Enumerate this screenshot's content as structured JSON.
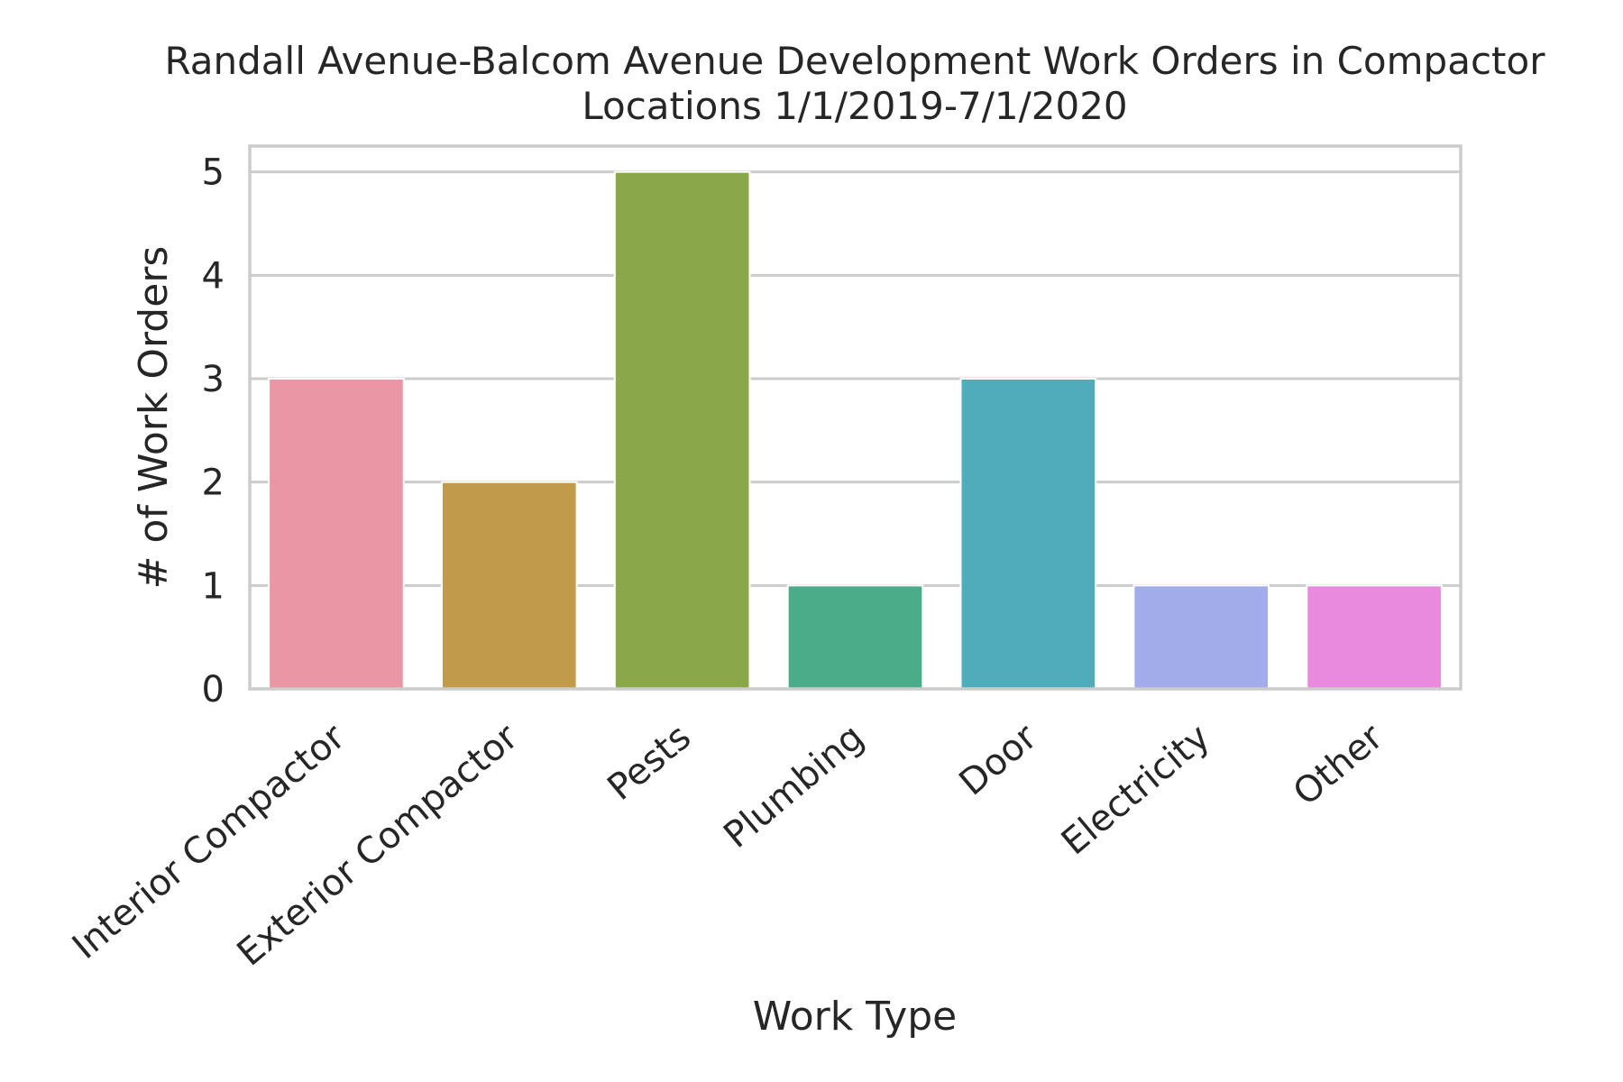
{
  "chart_data": {
    "type": "bar",
    "title_lines": [
      "Randall Avenue-Balcom Avenue Development Work Orders in Compactor",
      "Locations 1/1/2019-7/1/2020"
    ],
    "xlabel": "Work Type",
    "ylabel": "# of Work Orders",
    "categories": [
      "Interior Compactor",
      "Exterior Compactor",
      "Pests",
      "Plumbing",
      "Door",
      "Electricity",
      "Other"
    ],
    "values": [
      3,
      2,
      5,
      1,
      3,
      1,
      1
    ],
    "colors": [
      "#ea96a3",
      "#c29a4b",
      "#89a84a",
      "#4bac8a",
      "#50abbb",
      "#a2acea",
      "#e98ade"
    ],
    "y_ticks": [
      0,
      1,
      2,
      3,
      4,
      5
    ],
    "ylim": [
      0,
      5.25
    ],
    "grid": true,
    "background": "#ffffff",
    "grid_color": "#cccccc",
    "text_color": "#262626"
  }
}
